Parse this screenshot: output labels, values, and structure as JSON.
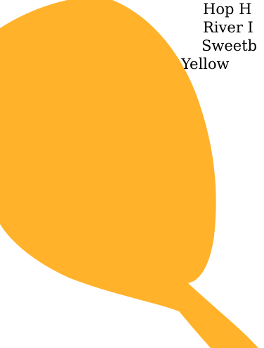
{
  "page": {
    "background": "#ffffff",
    "leaf_color": "#ffb22a",
    "text_color": "#000000"
  },
  "list": {
    "items": [
      "Hop H",
      "River I",
      "Sweetb",
      "Yellow"
    ]
  }
}
